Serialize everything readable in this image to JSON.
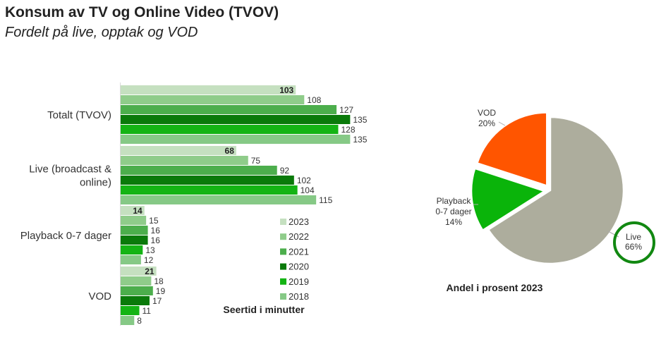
{
  "header": {
    "title": "Konsum av TV og Online Video (TVOV)",
    "subtitle": "Fordelt på live, opptak og VOD"
  },
  "chart_data": [
    {
      "type": "bar",
      "orientation": "horizontal",
      "xlabel": "Seertid i minutter",
      "categories": [
        "Totalt (TVOV)",
        "Live (broadcast & online)",
        "Playback 0-7 dager",
        "VOD"
      ],
      "category_lines": [
        [
          "Totalt (TVOV)"
        ],
        [
          "Live (broadcast &",
          "online)"
        ],
        [
          "Playback 0-7 dager"
        ],
        [
          "VOD"
        ]
      ],
      "series": [
        {
          "name": "2023",
          "color": "#c5e0c0",
          "values": [
            103,
            68,
            14,
            21
          ]
        },
        {
          "name": "2022",
          "color": "#8fcc8a",
          "values": [
            108,
            75,
            15,
            18
          ]
        },
        {
          "name": "2021",
          "color": "#4cae4c",
          "values": [
            127,
            92,
            16,
            19
          ]
        },
        {
          "name": "2020",
          "color": "#0a7a0a",
          "values": [
            135,
            102,
            16,
            17
          ]
        },
        {
          "name": "2019",
          "color": "#14b414",
          "values": [
            128,
            104,
            13,
            11
          ]
        },
        {
          "name": "2018",
          "color": "#86c986",
          "values": [
            135,
            115,
            12,
            8
          ]
        }
      ],
      "bold_series": "2023",
      "legend": {
        "position": "right"
      },
      "grid": false
    },
    {
      "type": "pie",
      "title": "Andel i prosent 2023",
      "slices": [
        {
          "label": "Live",
          "value": 66,
          "display": "66%",
          "color": "#adad9d",
          "label_lines": [
            "Live",
            "66%"
          ]
        },
        {
          "label": "Playback 0-7 dager",
          "value": 14,
          "display": "14%",
          "color": "#0ab40a",
          "label_lines": [
            "Playback",
            "0-7 dager",
            "14%"
          ]
        },
        {
          "label": "VOD",
          "value": 20,
          "display": "20%",
          "color": "#ff5500",
          "label_lines": [
            "VOD",
            "20%"
          ]
        }
      ],
      "highlight": "Live",
      "highlight_color": "#118811"
    }
  ]
}
